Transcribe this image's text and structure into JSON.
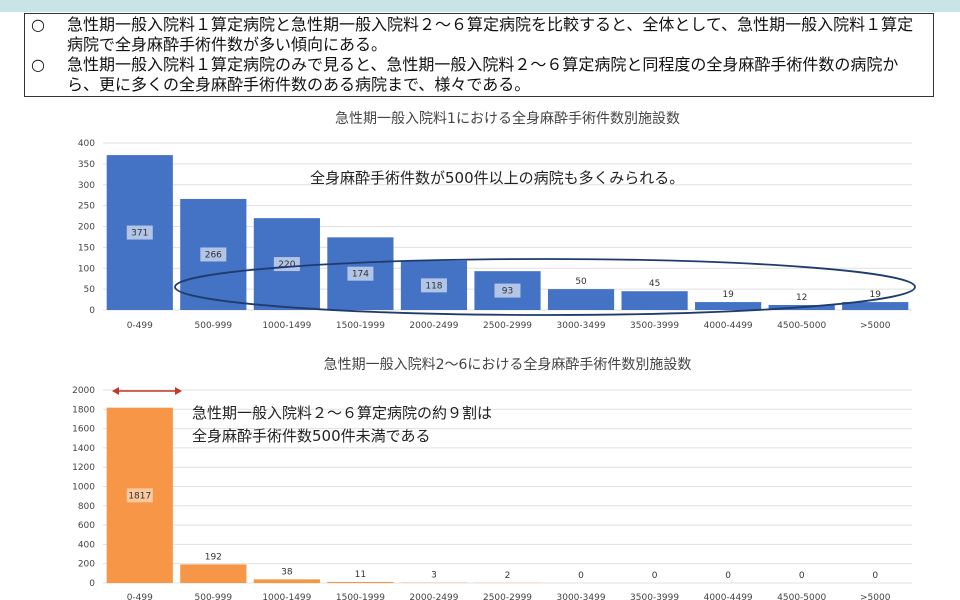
{
  "notes": [
    {
      "bullet": "○",
      "text": "急性期一般入院料１算定病院と急性期一般入院料２～６算定病院を比較すると、全体として、急性期一般入院料１算定病院で全身麻酔手術件数が多い傾向にある。"
    },
    {
      "bullet": "○",
      "text": "急性期一般入院料１算定病院のみで見ると、急性期一般入院料２～６算定病院と同程度の全身麻酔手術件数の病院から、更に多くの全身麻酔手術件数のある病院まで、様々である。"
    }
  ],
  "chart_data": [
    {
      "type": "bar",
      "title": "急性期一般入院料1における全身麻酔手術件数別施設数",
      "categories": [
        "0-499",
        "500-999",
        "1000-1499",
        "1500-1999",
        "2000-2499",
        "2500-2999",
        "3000-3499",
        "3500-3999",
        "4000-4499",
        "4500-5000",
        ">5000"
      ],
      "values": [
        371,
        266,
        220,
        174,
        118,
        93,
        50,
        45,
        19,
        12,
        19
      ],
      "yticks": [
        0,
        50,
        100,
        150,
        200,
        250,
        300,
        350,
        400
      ],
      "ylim": [
        0,
        400
      ],
      "color": "#4472c4",
      "annotation": "全身麻酔手術件数が500件以上の病院も多くみられる。"
    },
    {
      "type": "bar",
      "title": "急性期一般入院料2～6における全身麻酔手術件数別施設数",
      "categories": [
        "0-499",
        "500-999",
        "1000-1499",
        "1500-1999",
        "2000-2499",
        "2500-2999",
        "3000-3499",
        "3500-3999",
        "4000-4499",
        "4500-5000",
        ">5000"
      ],
      "values": [
        1817,
        192,
        38,
        11,
        3,
        2,
        0,
        0,
        0,
        0,
        0
      ],
      "yticks": [
        0,
        200,
        400,
        600,
        800,
        1000,
        1200,
        1400,
        1600,
        1800,
        2000
      ],
      "ylim": [
        0,
        2000
      ],
      "color": "#f79646",
      "annotation_lines": [
        "急性期一般入院料２～６算定病院の約９割は",
        "全身麻酔手術件数500件未満である"
      ]
    }
  ]
}
